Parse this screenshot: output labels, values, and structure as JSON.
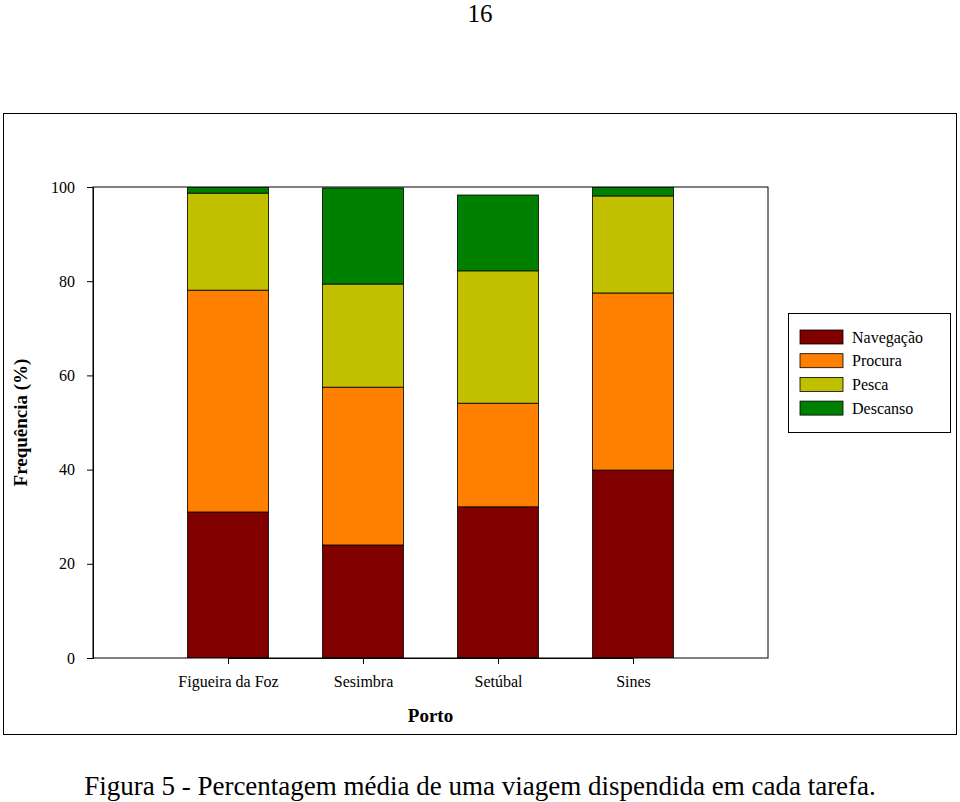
{
  "page_number": 16,
  "chart_data": {
    "type": "bar",
    "stacked": true,
    "title": "Figura 5 - Percentagem média de uma viagem dispendida em cada tarefa.",
    "x_label": "Porto",
    "y_label": "Frequência (%)",
    "categories": [
      "Figueira da Foz",
      "Sesimbra",
      "Setúbal",
      "Sines"
    ],
    "series": [
      {
        "name": "Navegação",
        "color": "#800000",
        "values": [
          31.0,
          24.0,
          32.1,
          39.9
        ]
      },
      {
        "name": "Procura",
        "color": "#ff8000",
        "values": [
          47.1,
          33.5,
          22.0,
          37.6
        ]
      },
      {
        "name": "Pesca",
        "color": "#c0c000",
        "values": [
          20.6,
          21.9,
          28.1,
          20.6
        ]
      },
      {
        "name": "Descanso",
        "color": "#008000",
        "values": [
          1.3,
          20.4,
          16.1,
          1.9
        ]
      }
    ],
    "ylim": [
      0,
      100
    ],
    "yticks": [
      0,
      20,
      40,
      60,
      80,
      100
    ],
    "grid": false,
    "legend": "right"
  }
}
